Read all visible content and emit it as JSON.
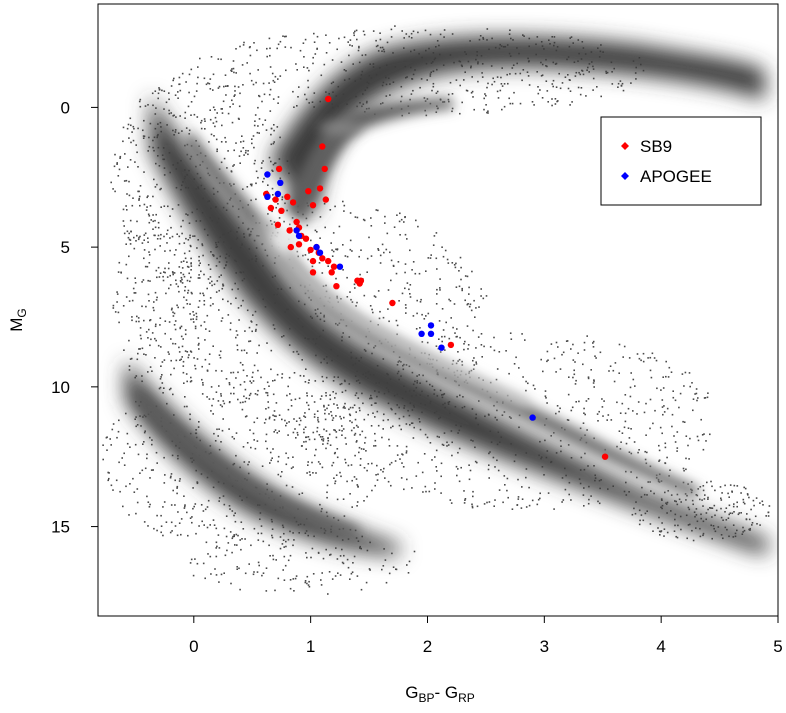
{
  "chart_data": {
    "type": "scatter",
    "title": "",
    "xlabel": {
      "main": "G",
      "sub": "BP",
      "sep": "- ",
      "main2": "G",
      "sub2": "RP"
    },
    "ylabel": {
      "main": "M",
      "sub": "G"
    },
    "xlim": [
      -0.82,
      5.0
    ],
    "ylim": [
      18.2,
      -3.7
    ],
    "y_inverted": true,
    "grid": false,
    "legend_position": "top-right",
    "x_ticks": [
      0,
      1,
      2,
      3,
      4,
      5
    ],
    "y_ticks": [
      0,
      5,
      10,
      15
    ],
    "x_tick_labels": [
      "0",
      "1",
      "2",
      "3",
      "4",
      "5"
    ],
    "y_tick_labels": [
      "0",
      "5",
      "10",
      "15"
    ],
    "background_density": "grayscale Gaia HR-diagram density (main sequence, giant branch, white dwarf sequence)",
    "series": [
      {
        "name": "SB9",
        "color": "#ff0000",
        "points": [
          [
            1.15,
            -0.3
          ],
          [
            1.1,
            1.4
          ],
          [
            1.12,
            2.2
          ],
          [
            1.08,
            2.9
          ],
          [
            1.13,
            3.3
          ],
          [
            0.98,
            3.0
          ],
          [
            1.02,
            3.5
          ],
          [
            0.85,
            3.4
          ],
          [
            0.8,
            3.2
          ],
          [
            0.73,
            2.2
          ],
          [
            0.7,
            3.3
          ],
          [
            0.62,
            3.1
          ],
          [
            0.66,
            3.6
          ],
          [
            0.75,
            3.7
          ],
          [
            0.72,
            4.2
          ],
          [
            0.82,
            4.4
          ],
          [
            0.88,
            4.1
          ],
          [
            0.9,
            4.3
          ],
          [
            0.92,
            4.6
          ],
          [
            0.96,
            4.7
          ],
          [
            0.83,
            5.0
          ],
          [
            0.9,
            4.9
          ],
          [
            1.0,
            5.1
          ],
          [
            1.05,
            5.0
          ],
          [
            1.07,
            5.2
          ],
          [
            1.02,
            5.5
          ],
          [
            1.1,
            5.4
          ],
          [
            1.15,
            5.5
          ],
          [
            1.2,
            5.7
          ],
          [
            1.18,
            5.9
          ],
          [
            1.02,
            5.9
          ],
          [
            1.22,
            6.4
          ],
          [
            1.4,
            6.2
          ],
          [
            1.42,
            6.3
          ],
          [
            1.43,
            6.2
          ],
          [
            1.7,
            7.0
          ],
          [
            2.2,
            8.5
          ],
          [
            3.52,
            12.5
          ]
        ]
      },
      {
        "name": "APOGEE",
        "color": "#0000ff",
        "points": [
          [
            0.63,
            2.4
          ],
          [
            0.74,
            2.7
          ],
          [
            0.72,
            3.1
          ],
          [
            0.63,
            3.2
          ],
          [
            0.88,
            4.4
          ],
          [
            0.9,
            4.6
          ],
          [
            1.05,
            5.0
          ],
          [
            1.08,
            5.2
          ],
          [
            1.25,
            5.7
          ],
          [
            1.95,
            8.1
          ],
          [
            2.03,
            8.1
          ],
          [
            2.03,
            7.8
          ],
          [
            2.12,
            8.6
          ],
          [
            2.9,
            11.1
          ]
        ]
      }
    ]
  }
}
